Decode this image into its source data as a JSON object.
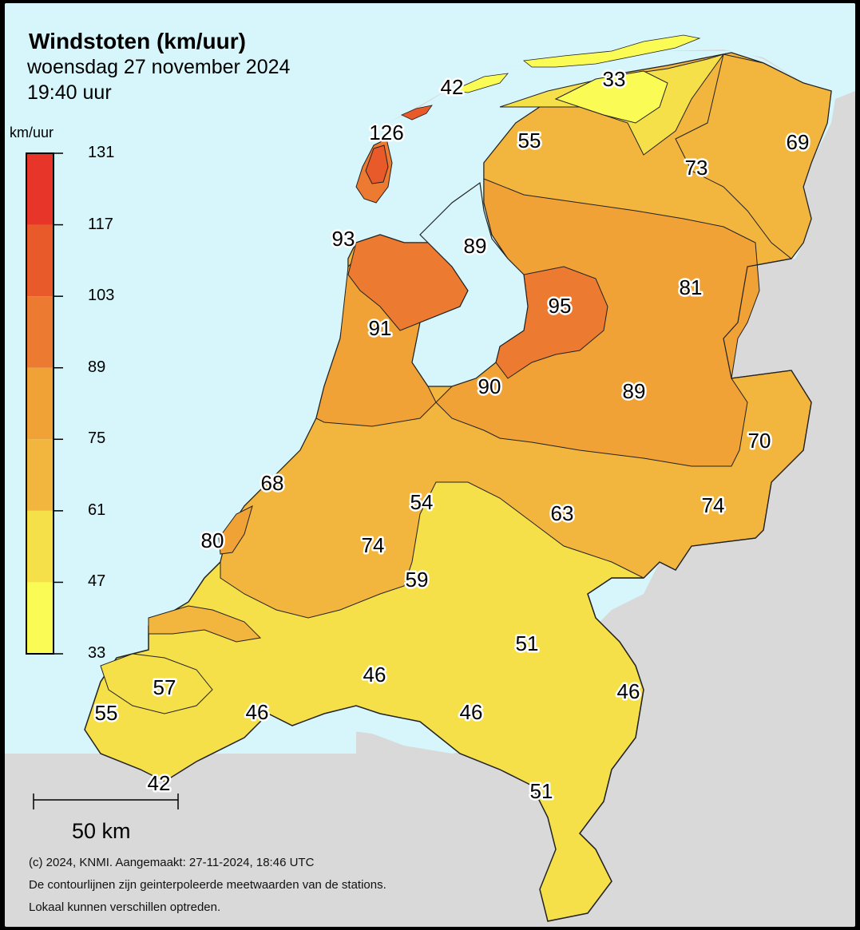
{
  "header": {
    "title": "Windstoten (km/uur)",
    "date": "woensdag 27 november 2024",
    "time": "19:40 uur"
  },
  "legend": {
    "unit": "km/uur",
    "ticks": [
      "131",
      "117",
      "103",
      "89",
      "75",
      "61",
      "47",
      "33"
    ],
    "classes": [
      {
        "min": 117,
        "max": 131,
        "color": "#e8352a"
      },
      {
        "min": 103,
        "max": 117,
        "color": "#e95a2a"
      },
      {
        "min": 89,
        "max": 103,
        "color": "#ec7a30"
      },
      {
        "min": 75,
        "max": 89,
        "color": "#f0a236"
      },
      {
        "min": 61,
        "max": 75,
        "color": "#f2b53d"
      },
      {
        "min": 47,
        "max": 61,
        "color": "#f6e04a"
      },
      {
        "min": 33,
        "max": 47,
        "color": "#fbfb55"
      }
    ]
  },
  "colors": {
    "sea": "#d6f6fb",
    "land_outside": "#d9d9d9",
    "water_inland": "#d6f6fb"
  },
  "scale": {
    "label": "50 km"
  },
  "stations": [
    {
      "name": "vlieland-terschelling",
      "value": "42"
    },
    {
      "name": "schiermonnikoog",
      "value": "33"
    },
    {
      "name": "texel",
      "value": "126"
    },
    {
      "name": "lauwersoog",
      "value": "55"
    },
    {
      "name": "delfzijl",
      "value": "69"
    },
    {
      "name": "groningen",
      "value": "73"
    },
    {
      "name": "den-helder",
      "value": "93"
    },
    {
      "name": "stavoren",
      "value": "89"
    },
    {
      "name": "hoogeveen",
      "value": "81"
    },
    {
      "name": "marknesse",
      "value": "95"
    },
    {
      "name": "berkhout",
      "value": "91"
    },
    {
      "name": "lelystad",
      "value": "90"
    },
    {
      "name": "heino",
      "value": "89"
    },
    {
      "name": "twenthe",
      "value": "70"
    },
    {
      "name": "ijmuiden",
      "value": "68"
    },
    {
      "name": "de-bilt",
      "value": "54"
    },
    {
      "name": "deelen",
      "value": "63"
    },
    {
      "name": "hupsel",
      "value": "74"
    },
    {
      "name": "hoek-van-holland",
      "value": "80"
    },
    {
      "name": "rotterdam",
      "value": "74"
    },
    {
      "name": "herwijnen",
      "value": "59"
    },
    {
      "name": "volkel",
      "value": "51"
    },
    {
      "name": "vlissingen-zeeland",
      "value": "57"
    },
    {
      "name": "gilze-rijen",
      "value": "46"
    },
    {
      "name": "arcen",
      "value": "46"
    },
    {
      "name": "westkapelle",
      "value": "55"
    },
    {
      "name": "woensdrecht",
      "value": "46"
    },
    {
      "name": "eindhoven",
      "value": "46"
    },
    {
      "name": "westdorpe",
      "value": "42"
    },
    {
      "name": "ell",
      "value": "51"
    }
  ],
  "credits": [
    "(c) 2024, KNMI. Aangemaakt: 27-11-2024, 18:46 UTC",
    "De contourlijnen zijn geinterpoleerde meetwaarden van de stations.",
    "Lokaal kunnen verschillen optreden."
  ]
}
